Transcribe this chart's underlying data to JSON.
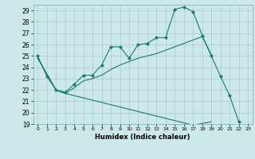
{
  "title": "",
  "xlabel": "Humidex (Indice chaleur)",
  "background_color": "#cce8e8",
  "grid_color": "#aacccc",
  "line_color": "#1a7a6e",
  "xlim": [
    -0.5,
    23.5
  ],
  "ylim": [
    19,
    29.5
  ],
  "yticks": [
    19,
    20,
    21,
    22,
    23,
    24,
    25,
    26,
    27,
    28,
    29
  ],
  "xticks": [
    0,
    1,
    2,
    3,
    4,
    5,
    6,
    7,
    8,
    9,
    10,
    11,
    12,
    13,
    14,
    15,
    16,
    17,
    18,
    19,
    20,
    21,
    22,
    23
  ],
  "series1_x": [
    0,
    1,
    2,
    3,
    4,
    5,
    6,
    7,
    8,
    9,
    10,
    11,
    12,
    13,
    14,
    15,
    16,
    17,
    18,
    19,
    20,
    21,
    22
  ],
  "series1_y": [
    25.0,
    23.2,
    22.0,
    21.8,
    22.5,
    23.3,
    23.3,
    24.2,
    25.8,
    25.8,
    24.8,
    26.0,
    26.1,
    26.6,
    26.6,
    29.1,
    29.3,
    28.9,
    26.8,
    25.0,
    23.2,
    21.5,
    19.2
  ],
  "series2_x": [
    0,
    2,
    3,
    4,
    5,
    6,
    7,
    8,
    9,
    10,
    11,
    12,
    13,
    14,
    15,
    16,
    17,
    18,
    19
  ],
  "series2_y": [
    24.8,
    22.0,
    21.7,
    22.2,
    22.8,
    23.0,
    23.3,
    23.8,
    24.2,
    24.5,
    24.8,
    25.0,
    25.2,
    25.5,
    25.8,
    26.1,
    26.4,
    26.7,
    25.1
  ],
  "series3_x": [
    0,
    2,
    3,
    4,
    5,
    6,
    7,
    8,
    9,
    10,
    11,
    12,
    13,
    14,
    15,
    16,
    17,
    19
  ],
  "series3_y": [
    24.8,
    22.0,
    21.7,
    21.5,
    21.3,
    21.1,
    20.9,
    20.7,
    20.5,
    20.3,
    20.1,
    19.9,
    19.7,
    19.5,
    19.3,
    19.1,
    18.9,
    19.2
  ]
}
